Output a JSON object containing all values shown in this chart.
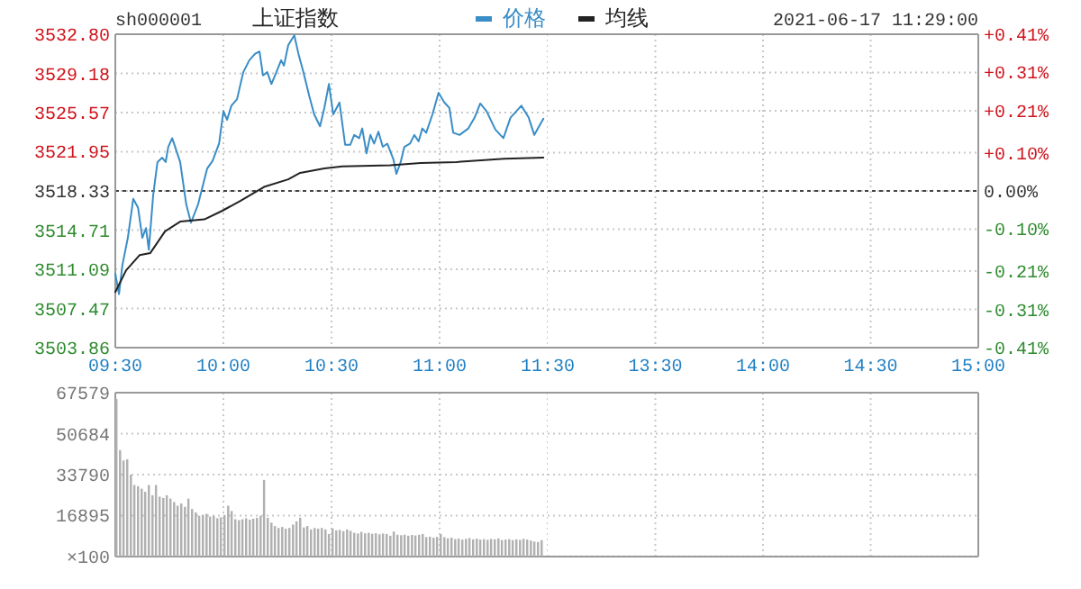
{
  "chart_data": [
    {
      "type": "line",
      "title": "上证指数",
      "annotations": [
        "sh000001"
      ],
      "xlim": [
        9.5,
        11.5
      ],
      "xticks": [
        {
          "value": 9.5,
          "label": "09:30"
        },
        {
          "value": 10,
          "label": "10:00"
        },
        {
          "value": 10.5,
          "label": "10:30"
        },
        {
          "value": 11,
          "label": "11:00"
        },
        {
          "value": 11.5,
          "label": "11:30"
        }
      ],
      "ylim": [
        3503.86,
        3532.8
      ],
      "yticks": [
        {
          "value": 3503.86,
          "label": "3503.86"
        },
        {
          "value": 3507.47,
          "label": "3507.47"
        },
        {
          "value": 3511.09,
          "label": "3511.09"
        },
        {
          "value": 3514.71,
          "label": "3514.71"
        },
        {
          "value": 3518.33,
          "label": "3518.33"
        },
        {
          "value": 3521.95,
          "label": "3521.95"
        },
        {
          "value": 3525.57,
          "label": "3525.57"
        },
        {
          "value": 3529.18,
          "label": "3529.18"
        },
        {
          "value": 3532.8,
          "label": "3532.80"
        }
      ],
      "ref_lines": [
        {
          "axis": "y",
          "value": 3518.33,
          "color": "#444444",
          "line_style": "dotted"
        }
      ],
      "grid": true,
      "legend": "top",
      "marker": "none",
      "line_style": "solid",
      "series": [
        {
          "name": "价格",
          "color": "#3a8dc6",
          "x": [
            9.5,
            9.517,
            9.533,
            9.558,
            9.583,
            9.605,
            9.625,
            9.642,
            9.655,
            9.675,
            9.695,
            9.717,
            9.733,
            9.745,
            9.763,
            9.8,
            9.828,
            9.85,
            9.883,
            9.925,
            9.95,
            9.98,
            10,
            10.017,
            10.037,
            10.063,
            10.092,
            10.12,
            10.147,
            10.167,
            10.183,
            10.203,
            10.222,
            10.245,
            10.267,
            10.28,
            10.3,
            10.328,
            10.347,
            10.37,
            10.397,
            10.42,
            10.447,
            10.467,
            10.488,
            10.508,
            10.537,
            10.563,
            10.587,
            10.605,
            10.628,
            10.642,
            10.662,
            10.68,
            10.697,
            10.717,
            10.737,
            10.758,
            10.787,
            10.8,
            10.82,
            10.837,
            10.863,
            10.883,
            10.903,
            10.92,
            10.938,
            10.967,
            10.995,
            11.022,
            11.045,
            11.063,
            11.092,
            11.133,
            11.162,
            11.188,
            11.217,
            11.258,
            11.295,
            11.328,
            11.378,
            11.412,
            11.438,
            11.48
          ],
          "values": [
            3510.7,
            3508.8,
            3511.5,
            3514.0,
            3517.6,
            3516.8,
            3514.0,
            3514.9,
            3512.9,
            3517.9,
            3521.0,
            3521.4,
            3521.0,
            3522.4,
            3523.2,
            3521.0,
            3517.1,
            3515.4,
            3517.1,
            3520.4,
            3521.1,
            3522.7,
            3525.7,
            3524.9,
            3526.2,
            3526.8,
            3529.3,
            3530.4,
            3531.0,
            3531.2,
            3529.0,
            3529.3,
            3528.2,
            3529.3,
            3530.4,
            3529.9,
            3531.8,
            3532.7,
            3531.0,
            3529.3,
            3527.1,
            3525.4,
            3524.3,
            3526.0,
            3528.2,
            3525.4,
            3526.5,
            3522.6,
            3522.6,
            3523.5,
            3523.2,
            3524.1,
            3521.8,
            3523.5,
            3522.7,
            3523.8,
            3522.4,
            3522.7,
            3521.2,
            3519.9,
            3521.0,
            3522.4,
            3522.7,
            3523.5,
            3522.9,
            3524.1,
            3523.7,
            3525.4,
            3527.4,
            3526.5,
            3526.0,
            3523.7,
            3523.5,
            3524.1,
            3525.1,
            3526.4,
            3525.7,
            3524.0,
            3523.2,
            3525.1,
            3526.2,
            3525.1,
            3523.5,
            3525.0
          ]
        },
        {
          "name": "均线",
          "color": "#222222",
          "x": [
            9.5,
            9.55,
            9.612,
            9.662,
            9.73,
            9.8,
            9.912,
            9.995,
            10.078,
            10.188,
            10.3,
            10.355,
            10.467,
            10.55,
            10.772,
            10.912,
            11.078,
            11.3,
            11.48
          ],
          "values": [
            3509.0,
            3511.0,
            3512.4,
            3512.6,
            3514.6,
            3515.5,
            3515.7,
            3516.5,
            3517.4,
            3518.7,
            3519.4,
            3520.0,
            3520.4,
            3520.6,
            3520.7,
            3520.9,
            3521.0,
            3521.3,
            3521.4
          ]
        }
      ]
    },
    {
      "type": "line",
      "annotations": [
        "2021-06-17 11:29:00"
      ],
      "xlim": [
        13,
        15
      ],
      "xticks": [
        {
          "value": 13.5,
          "label": "13:30"
        },
        {
          "value": 14,
          "label": "14:00"
        },
        {
          "value": 14.5,
          "label": "14:30"
        },
        {
          "value": 15,
          "label": "15:00"
        }
      ],
      "y2lim": [
        -0.41,
        0.41
      ],
      "y2ticks": [
        {
          "value": -0.41,
          "label": "-0.41%"
        },
        {
          "value": -0.31,
          "label": "-0.31%"
        },
        {
          "value": -0.21,
          "label": "-0.21%"
        },
        {
          "value": -0.1,
          "label": "-0.10%"
        },
        {
          "value": 0,
          "label": "0.00%"
        },
        {
          "value": 0.1,
          "label": "+0.10%"
        },
        {
          "value": 0.21,
          "label": "+0.21%"
        },
        {
          "value": 0.31,
          "label": "+0.31%"
        },
        {
          "value": 0.41,
          "label": "+0.41%"
        }
      ],
      "ref_lines": [
        {
          "axis": "y2",
          "value": 0,
          "color": "#444444",
          "line_style": "dotted"
        }
      ],
      "grid": true
    },
    {
      "type": "bar",
      "tick_labels": "y",
      "grid": true,
      "xlim": [
        9.5,
        11.5
      ],
      "xticks": [
        9.5,
        10,
        10.5,
        11,
        11.5
      ],
      "ylim": [
        0,
        67579
      ],
      "yticks": [
        {
          "value": 100,
          "label": "×100"
        },
        16895,
        33790,
        50684,
        67579
      ],
      "x": [
        9.5,
        9.517,
        9.533,
        9.55,
        9.567,
        9.583,
        9.6,
        9.617,
        9.633,
        9.65,
        9.667,
        9.683,
        9.7,
        9.717,
        9.733,
        9.75,
        9.767,
        9.783,
        9.8,
        9.817,
        9.833,
        9.85,
        9.867,
        9.883,
        9.9,
        9.917,
        9.933,
        9.95,
        9.967,
        9.983,
        10,
        10.017,
        10.033,
        10.05,
        10.067,
        10.083,
        10.1,
        10.117,
        10.133,
        10.15,
        10.167,
        10.183,
        10.2,
        10.217,
        10.233,
        10.25,
        10.267,
        10.283,
        10.3,
        10.317,
        10.333,
        10.35,
        10.367,
        10.383,
        10.4,
        10.417,
        10.433,
        10.45,
        10.467,
        10.483,
        10.5,
        10.517,
        10.533,
        10.55,
        10.567,
        10.583,
        10.6,
        10.617,
        10.633,
        10.65,
        10.667,
        10.683,
        10.7,
        10.717,
        10.733,
        10.75,
        10.767,
        10.783,
        10.8,
        10.817,
        10.833,
        10.85,
        10.867,
        10.883,
        10.9,
        10.917,
        10.933,
        10.95,
        10.967,
        10.983,
        11,
        11.017,
        11.033,
        11.05,
        11.067,
        11.083,
        11.1,
        11.117,
        11.133,
        11.15,
        11.167,
        11.183,
        11.2,
        11.217,
        11.233,
        11.25,
        11.267,
        11.283,
        11.3,
        11.317,
        11.333,
        11.35,
        11.367,
        11.383,
        11.4,
        11.417,
        11.433,
        11.45,
        11.467
      ],
      "series": [
        {
          "color": "#b0b0b0",
          "values": [
            65000,
            43900,
            39600,
            40100,
            33800,
            29500,
            29000,
            28000,
            26700,
            29500,
            25300,
            29500,
            24700,
            24200,
            25300,
            23900,
            22500,
            21000,
            21900,
            20500,
            23900,
            19600,
            18200,
            16800,
            17200,
            17600,
            16500,
            16800,
            15800,
            16200,
            17000,
            21000,
            18800,
            15400,
            15000,
            15400,
            15800,
            15200,
            15600,
            16000,
            16800,
            31600,
            16000,
            14000,
            12600,
            11800,
            12200,
            11500,
            11800,
            13200,
            14500,
            16000,
            12000,
            12600,
            11200,
            11800,
            11500,
            11800,
            11200,
            9300,
            11600,
            10800,
            11000,
            10500,
            11200,
            10600,
            9800,
            9500,
            10200,
            9600,
            9800,
            9400,
            9600,
            9200,
            9500,
            9300,
            8600,
            10300,
            9000,
            8800,
            9000,
            8600,
            8900,
            8700,
            9000,
            9300,
            8000,
            8200,
            7800,
            8100,
            9300,
            8000,
            7500,
            7800,
            7200,
            7400,
            7000,
            7300,
            7600,
            7100,
            7400,
            7000,
            7200,
            6900,
            7300,
            7100,
            7500,
            6800,
            7000,
            7200,
            6800,
            7100,
            6900,
            7300,
            7000,
            6600,
            6200,
            6000,
            6800
          ]
        }
      ]
    },
    {
      "type": "bar",
      "tick_labels": false,
      "grid": true,
      "xlim": [
        13,
        15
      ],
      "xticks": [
        13.5,
        14,
        14.5,
        15
      ],
      "ylim": [
        0,
        67579
      ],
      "yticks": [
        100,
        16895,
        33790,
        50684,
        67579
      ]
    }
  ]
}
